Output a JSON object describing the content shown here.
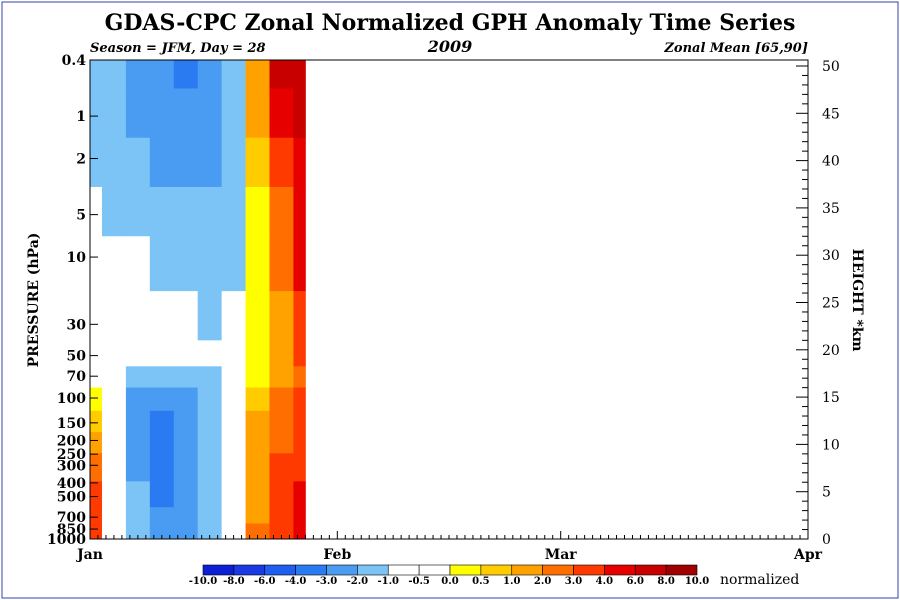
{
  "chart_data": {
    "type": "heatmap",
    "title": "GDAS-CPC Zonal Normalized GPH Anomaly Time Series",
    "subtitle_left": "Season = JFM, Day =  28",
    "subtitle_center": "2009",
    "subtitle_right": "Zonal Mean [65,90]",
    "ylabel": "PRESSURE (hPa)",
    "y2label": "HEIGHT *km",
    "colorbar_label": "normalized",
    "x_ticks": [
      {
        "day": 1,
        "label": "Jan"
      },
      {
        "day": 32,
        "label": "Feb"
      },
      {
        "day": 60,
        "label": "Mar"
      },
      {
        "day": 91,
        "label": "Apr"
      }
    ],
    "x_range_days": [
      1,
      91
    ],
    "data_end_day": 28,
    "y_pressure_ticks": [
      "0.4",
      "1",
      "2",
      "5",
      "10",
      "30",
      "50",
      "70",
      "100",
      "150",
      "200",
      "250",
      "300",
      "400",
      "500",
      "700",
      "850",
      "1000"
    ],
    "y_pressure_range": [
      1000,
      0.4
    ],
    "y_height_ticks": [
      "0",
      "5",
      "10",
      "15",
      "20",
      "25",
      "30",
      "35",
      "40",
      "45",
      "50"
    ],
    "colorbar": {
      "labels": [
        "-10.0",
        "-8.0",
        "-6.0",
        "-4.0",
        "-3.0",
        "-2.0",
        "-1.0",
        "-0.5",
        "0.0",
        "0.5",
        "1.0",
        "2.0",
        "3.0",
        "4.0",
        "6.0",
        "8.0",
        "10.0"
      ],
      "colors": [
        "#0a1fd6",
        "#1a3ae6",
        "#1e5ef0",
        "#2a7af2",
        "#4a9cf2",
        "#7cc4f6",
        "#ffffff",
        "#ffffff",
        "#ffff00",
        "#ffcc00",
        "#ffa200",
        "#ff6e00",
        "#ff3a00",
        "#e60000",
        "#c80000",
        "#a00000"
      ]
    },
    "series": [
      {
        "x_days": [
          1,
          4,
          7,
          10,
          13,
          16,
          19,
          22,
          25,
          28
        ],
        "pressure_levels_hPa": [
          1000,
          850,
          700,
          500,
          300,
          200,
          150,
          100,
          70,
          50,
          30,
          10,
          5,
          2,
          1,
          0.4
        ],
        "z": [
          [
            3.0,
            -1.0,
            -2.0,
            -3.0,
            -3.0,
            -2.0,
            -1.0,
            2.0,
            3.0,
            4.0
          ],
          [
            3.0,
            -0.5,
            -2.0,
            -3.0,
            -3.0,
            -2.0,
            -1.0,
            2.0,
            3.0,
            4.0
          ],
          [
            3.0,
            -0.5,
            -2.0,
            -3.0,
            -3.0,
            -2.0,
            -1.0,
            1.0,
            3.0,
            4.0
          ],
          [
            3.0,
            -0.5,
            -2.0,
            -4.0,
            -3.0,
            -2.0,
            -1.0,
            1.0,
            3.0,
            4.0
          ],
          [
            2.0,
            -0.5,
            -3.0,
            -4.0,
            -3.0,
            -2.0,
            -1.0,
            1.0,
            3.0,
            3.0
          ],
          [
            1.0,
            -1.0,
            -3.0,
            -4.0,
            -3.0,
            -2.0,
            -1.0,
            1.0,
            2.0,
            3.0
          ],
          [
            0.5,
            -1.0,
            -3.0,
            -4.0,
            -3.0,
            -2.0,
            -1.0,
            1.0,
            2.0,
            3.0
          ],
          [
            0.0,
            -1.0,
            -3.0,
            -3.0,
            -3.0,
            -2.0,
            -1.0,
            0.5,
            2.0,
            3.0
          ],
          [
            -0.5,
            -1.0,
            -2.0,
            -2.0,
            -2.0,
            -2.0,
            -1.0,
            0.0,
            1.0,
            2.0
          ],
          [
            -1.0,
            -1.0,
            -1.0,
            -1.0,
            -1.0,
            -1.0,
            -1.0,
            0.0,
            1.0,
            3.0
          ],
          [
            -1.0,
            -1.0,
            -1.0,
            -1.0,
            -1.0,
            -2.0,
            -1.0,
            0.0,
            1.0,
            3.0
          ],
          [
            -1.0,
            -1.0,
            -1.0,
            -2.0,
            -2.0,
            -2.0,
            -2.0,
            0.0,
            2.0,
            4.0
          ],
          [
            -1.0,
            -2.0,
            -2.0,
            -2.0,
            -2.0,
            -2.0,
            -2.0,
            0.0,
            2.0,
            4.0
          ],
          [
            -2.0,
            -2.0,
            -2.0,
            -3.0,
            -3.0,
            -3.0,
            -2.0,
            0.5,
            3.0,
            4.0
          ],
          [
            -2.0,
            -2.0,
            -3.0,
            -3.0,
            -3.0,
            -3.0,
            -2.0,
            1.0,
            4.0,
            6.0
          ],
          [
            -2.0,
            -2.0,
            -3.0,
            -3.0,
            -4.0,
            -3.0,
            -2.0,
            1.0,
            6.0,
            6.0
          ]
        ]
      }
    ],
    "grid": false
  }
}
